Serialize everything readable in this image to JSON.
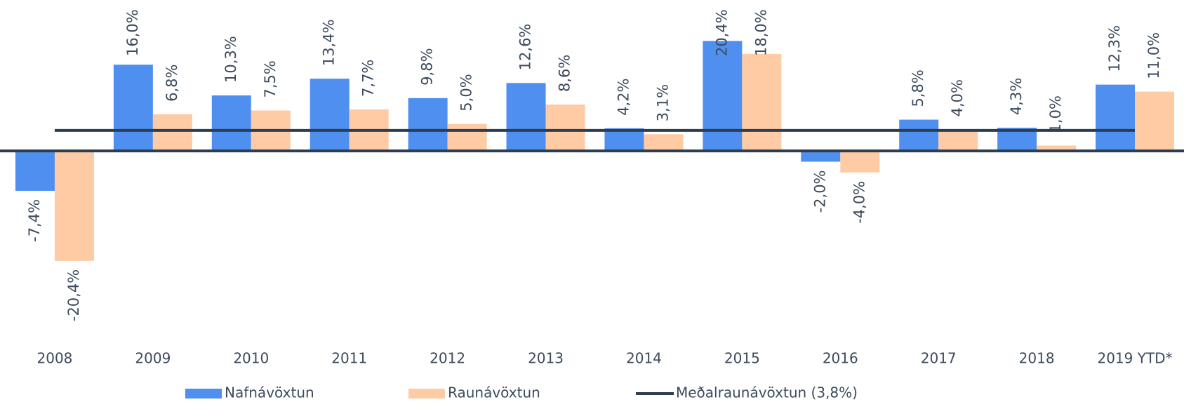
{
  "chart_data": {
    "type": "bar",
    "categories": [
      "2008",
      "2009",
      "2010",
      "2011",
      "2012",
      "2013",
      "2014",
      "2015",
      "2016",
      "2017",
      "2018",
      "2019 YTD*"
    ],
    "series": [
      {
        "name": "Nafnávöxtun",
        "color": "#4f8fef",
        "values": [
          -7.4,
          16.0,
          10.3,
          13.4,
          9.8,
          12.6,
          4.2,
          20.4,
          -2.0,
          5.8,
          4.3,
          12.3
        ],
        "value_labels": [
          "-7,4%",
          "16,0%",
          "10,3%",
          "13,4%",
          "9,8%",
          "12,6%",
          "4,2%",
          "20,4%",
          "-2,0%",
          "5,8%",
          "4,3%",
          "12,3%"
        ]
      },
      {
        "name": "Raunávöxtun",
        "color": "#ffcba4",
        "values": [
          -20.4,
          6.8,
          7.5,
          7.7,
          5.0,
          8.6,
          3.1,
          18.0,
          -4.0,
          4.0,
          1.0,
          11.0
        ],
        "value_labels": [
          "-20,4%",
          "6,8%",
          "7,5%",
          "7,7%",
          "5,0%",
          "8,6%",
          "3,1%",
          "18,0%",
          "-4,0%",
          "4,0%",
          "1,0%",
          "11,0%"
        ]
      }
    ],
    "reference_line": {
      "name": "Meðalraunávöxtun (3,8%)",
      "value": 3.8,
      "color": "#2d3e50"
    },
    "ylim": [
      -35,
      28
    ]
  }
}
